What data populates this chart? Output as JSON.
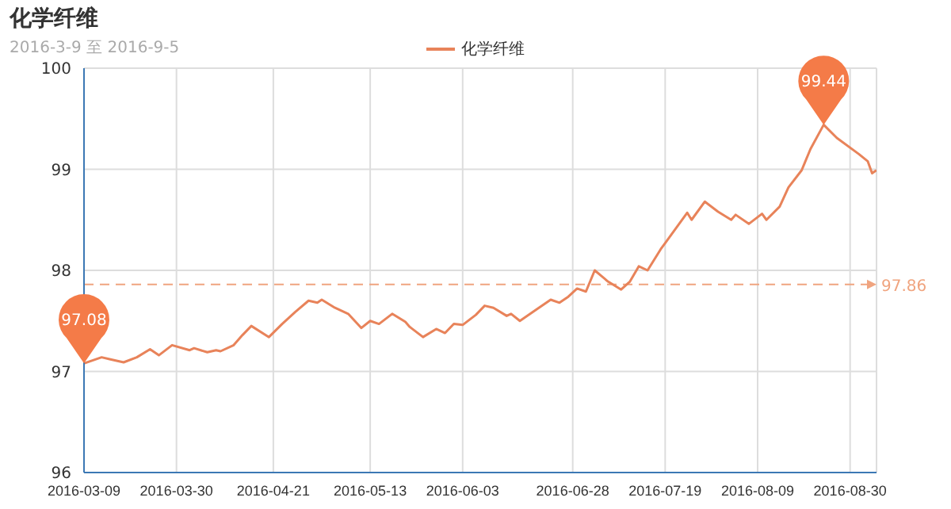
{
  "chart_data": {
    "type": "line",
    "title": "化学纤维",
    "subtitle": "2016-3-9 至 2016-9-5",
    "x": [
      "2016-03-09",
      "2016-03-13",
      "2016-03-15",
      "2016-03-18",
      "2016-03-21",
      "2016-03-24",
      "2016-03-26",
      "2016-03-29",
      "2016-04-02",
      "2016-04-03",
      "2016-04-06",
      "2016-04-08",
      "2016-04-09",
      "2016-04-12",
      "2016-04-14",
      "2016-04-16",
      "2016-04-20",
      "2016-04-23",
      "2016-04-26",
      "2016-04-29",
      "2016-05-01",
      "2016-05-02",
      "2016-05-05",
      "2016-05-08",
      "2016-05-11",
      "2016-05-13",
      "2016-05-15",
      "2016-05-18",
      "2016-05-21",
      "2016-05-22",
      "2016-05-25",
      "2016-05-28",
      "2016-05-30",
      "2016-06-01",
      "2016-06-03",
      "2016-06-06",
      "2016-06-08",
      "2016-06-10",
      "2016-06-13",
      "2016-06-14",
      "2016-06-16",
      "2016-06-19",
      "2016-06-23",
      "2016-06-25",
      "2016-06-27",
      "2016-06-29",
      "2016-07-01",
      "2016-07-03",
      "2016-07-06",
      "2016-07-09",
      "2016-07-11",
      "2016-07-13",
      "2016-07-15",
      "2016-07-18",
      "2016-07-19",
      "2016-07-24",
      "2016-07-25",
      "2016-07-28",
      "2016-07-31",
      "2016-08-03",
      "2016-08-04",
      "2016-08-07",
      "2016-08-10",
      "2016-08-11",
      "2016-08-14",
      "2016-08-16",
      "2016-08-19",
      "2016-08-21",
      "2016-08-24",
      "2016-08-27",
      "2016-09-01",
      "2016-09-03",
      "2016-09-04",
      "2016-09-05"
    ],
    "series": [
      {
        "name": "化学纤维",
        "color": "#e8835a",
        "values": [
          97.08,
          97.14,
          97.12,
          97.09,
          97.14,
          97.22,
          97.16,
          97.26,
          97.21,
          97.23,
          97.19,
          97.21,
          97.2,
          97.26,
          97.36,
          97.45,
          97.34,
          97.47,
          97.59,
          97.7,
          97.68,
          97.71,
          97.63,
          97.57,
          97.43,
          97.5,
          97.47,
          97.57,
          97.49,
          97.44,
          97.34,
          97.42,
          97.38,
          97.47,
          97.46,
          97.56,
          97.65,
          97.63,
          97.55,
          97.57,
          97.5,
          97.59,
          97.71,
          97.68,
          97.74,
          97.82,
          97.79,
          98.0,
          97.89,
          97.81,
          97.89,
          98.04,
          98.0,
          98.21,
          98.27,
          98.57,
          98.5,
          98.68,
          98.58,
          98.5,
          98.55,
          98.46,
          98.56,
          98.5,
          98.63,
          98.82,
          98.99,
          99.2,
          99.44,
          99.31,
          99.15,
          99.08,
          98.96,
          98.99
        ]
      }
    ],
    "xlim": [
      "2016-03-09",
      "2016-09-05"
    ],
    "xticks": [
      "2016-03-09",
      "2016-03-30",
      "2016-04-21",
      "2016-05-13",
      "2016-06-03",
      "2016-06-28",
      "2016-07-19",
      "2016-08-09",
      "2016-08-30"
    ],
    "ylim": [
      96,
      100
    ],
    "yticks": [
      96,
      97,
      98,
      99,
      100
    ],
    "grid": true,
    "legend": "top",
    "marker": "none",
    "line_style": "solid",
    "ref_lines": [
      {
        "axis": "y",
        "value": 97.86,
        "label": "97.86",
        "color": "#f0a47f",
        "line_style": "dashed"
      }
    ],
    "annotations": [
      {
        "text": "99.44",
        "x": "2016-08-24",
        "y": 99.44
      },
      {
        "text": "97.08",
        "x": "2016-03-09",
        "y": 97.08
      }
    ]
  }
}
